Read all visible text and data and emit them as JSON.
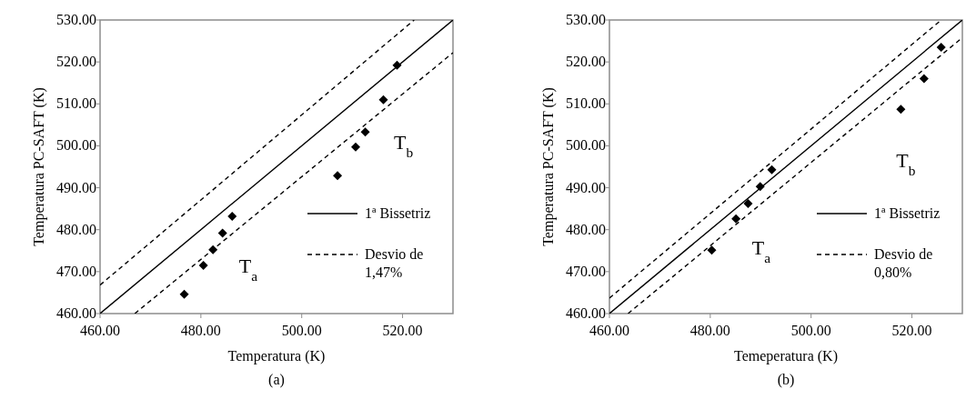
{
  "chart_data": [
    {
      "type": "scatter",
      "xlabel": "Temperatura (K)",
      "ylabel": "Temperatura  PC-SAFT (K)",
      "xlim": [
        460,
        530
      ],
      "ylim": [
        460,
        530
      ],
      "xticks": [
        {
          "value": 460,
          "label": "460.00"
        },
        {
          "value": 480,
          "label": "480.00"
        },
        {
          "value": 500,
          "label": "500.00"
        },
        {
          "value": 520,
          "label": "520.00"
        }
      ],
      "yticks": [
        {
          "value": 460,
          "label": "460.00"
        },
        {
          "value": 470,
          "label": "470.00"
        },
        {
          "value": 480,
          "label": "480.00"
        },
        {
          "value": 490,
          "label": "490.00"
        },
        {
          "value": 500,
          "label": "500.00"
        },
        {
          "value": 510,
          "label": "510.00"
        },
        {
          "value": 520,
          "label": "520.00"
        },
        {
          "value": 530,
          "label": "530.00"
        }
      ],
      "grid": false,
      "legend": "bottom right",
      "marker": "diamond",
      "series": [
        {
          "color": "#000000",
          "x": [
            476.7,
            480.5,
            482.4,
            484.3,
            486.2,
            507.1,
            510.7,
            512.6,
            516.2,
            518.9
          ],
          "values": [
            464.6,
            471.5,
            475.2,
            479.2,
            483.2,
            492.9,
            499.7,
            503.3,
            511.0,
            519.2
          ]
        },
        {
          "type": "line",
          "name": "1ª Bissetriz",
          "color": "#000000",
          "line_style": "solid",
          "marker": "none",
          "x": [
            460,
            530
          ],
          "values": [
            460,
            530
          ]
        },
        {
          "type": "line",
          "name": "Desvio de 1,47%",
          "color": "#000000",
          "line_style": "dashed",
          "marker": "none",
          "x": [
            460,
            522.3
          ],
          "values": [
            466.8,
            530
          ]
        },
        {
          "type": "line",
          "color": "#000000",
          "line_style": "dashed",
          "marker": "none",
          "x": [
            466.9,
            530
          ],
          "values": [
            460,
            522.2
          ]
        }
      ],
      "annotations": [
        "(a)",
        "T$_{a}$",
        "T$_{b}$"
      ]
    },
    {
      "type": "scatter",
      "xlabel": "Temeperatura (K)",
      "ylabel": "Temperatura PC-SAFT (K)",
      "xlim": [
        460,
        530
      ],
      "ylim": [
        460,
        530
      ],
      "xticks": [
        {
          "value": 460,
          "label": "460.00"
        },
        {
          "value": 480,
          "label": "480.00"
        },
        {
          "value": 500,
          "label": "500.00"
        },
        {
          "value": 520,
          "label": "520.00"
        }
      ],
      "yticks": [
        {
          "value": 460,
          "label": "460.00"
        },
        {
          "value": 470,
          "label": "470.00"
        },
        {
          "value": 480,
          "label": "480.00"
        },
        {
          "value": 490,
          "label": "490.00"
        },
        {
          "value": 500,
          "label": "500.00"
        },
        {
          "value": 510,
          "label": "510.00"
        },
        {
          "value": 520,
          "label": "520.00"
        },
        {
          "value": 530,
          "label": "530.00"
        }
      ],
      "grid": false,
      "legend": "bottom right",
      "marker": "diamond",
      "series": [
        {
          "color": "#000000",
          "x": [
            480.3,
            485.1,
            487.5,
            489.9,
            492.2,
            517.8,
            522.4,
            525.8
          ],
          "values": [
            475.1,
            482.6,
            486.2,
            490.3,
            494.3,
            508.7,
            516.0,
            523.5
          ]
        },
        {
          "type": "line",
          "name": "1ª Bissetriz",
          "color": "#000000",
          "line_style": "solid",
          "marker": "none",
          "x": [
            460,
            530
          ],
          "values": [
            460,
            530
          ]
        },
        {
          "type": "line",
          "name": "Desvio de 0,80%",
          "color": "#000000",
          "line_style": "dashed",
          "marker": "none",
          "x": [
            460,
            525.8
          ],
          "values": [
            463.7,
            530
          ]
        },
        {
          "type": "line",
          "color": "#000000",
          "line_style": "dashed",
          "marker": "none",
          "x": [
            463.7,
            530
          ],
          "values": [
            460,
            525.8
          ]
        }
      ],
      "annotations": [
        "(b)",
        "T$_{a}$",
        "T$_{b}$"
      ]
    }
  ]
}
